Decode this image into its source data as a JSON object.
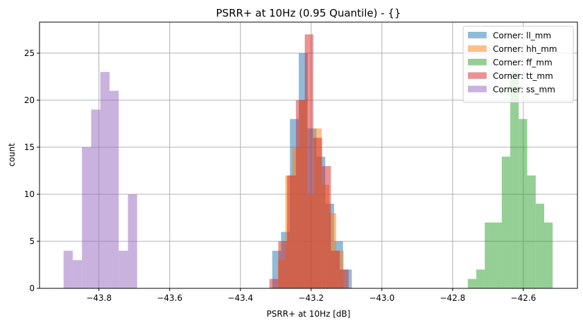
{
  "chart_data": {
    "type": "bar",
    "subtype": "histogram",
    "title": "PSRR+ at 10Hz (0.95 Quantile) - {}",
    "xlabel": "PSRR+ at 10Hz [dB]",
    "ylabel": "count",
    "xlim": [
      -43.968,
      -42.447
    ],
    "ylim": [
      0,
      28.3
    ],
    "xticks": [
      -43.8,
      -43.6,
      -43.4,
      -43.2,
      -43.0,
      -42.8,
      -42.6
    ],
    "xtick_labels": [
      "−43.8",
      "−43.6",
      "−43.4",
      "−43.2",
      "−43.0",
      "−42.8",
      "−42.6"
    ],
    "yticks": [
      0,
      5,
      10,
      15,
      20,
      25
    ],
    "ytick_labels": [
      "0",
      "5",
      "10",
      "15",
      "20",
      "25"
    ],
    "grid": true,
    "legend_position": "top-right",
    "alpha": 0.5,
    "series": [
      {
        "name": "Corner: ll_mm",
        "color": "#1f77b4",
        "bin_edges": [
          -43.31,
          -43.285,
          -43.26,
          -43.235,
          -43.21,
          -43.185,
          -43.16,
          -43.135,
          -43.11,
          -43.085
        ],
        "counts": [
          4,
          6,
          18,
          25,
          17,
          14,
          9,
          5,
          2
        ]
      },
      {
        "name": "Corner: hh_mm",
        "color": "#ff7f0e",
        "bin_edges": [
          -43.294,
          -43.273,
          -43.253,
          -43.232,
          -43.211,
          -43.191,
          -43.17,
          -43.149,
          -43.129,
          -43.108
        ],
        "counts": [
          3,
          12,
          15,
          20,
          10,
          17,
          11,
          8,
          4
        ]
      },
      {
        "name": "Corner: ff_mm",
        "color": "#2ca02c",
        "bin_edges": [
          -42.757,
          -42.733,
          -42.709,
          -42.685,
          -42.661,
          -42.637,
          -42.613,
          -42.589,
          -42.565,
          -42.541,
          -42.517
        ],
        "counts": [
          1,
          2,
          7,
          7,
          14,
          23,
          18,
          12,
          9,
          7
        ]
      },
      {
        "name": "Corner: tt_mm",
        "color": "#d62728",
        "bin_edges": [
          -43.318,
          -43.293,
          -43.268,
          -43.243,
          -43.218,
          -43.194,
          -43.169,
          -43.144,
          -43.119,
          -43.094
        ],
        "counts": [
          1,
          5,
          12,
          20,
          27,
          16,
          13,
          4,
          2
        ]
      },
      {
        "name": "Corner: ss_mm",
        "color": "#9467bd",
        "bin_edges": [
          -43.9,
          -43.874,
          -43.848,
          -43.822,
          -43.796,
          -43.77,
          -43.744,
          -43.718,
          -43.692
        ],
        "counts": [
          4,
          3,
          15,
          19,
          23,
          21,
          4,
          10
        ]
      }
    ]
  }
}
